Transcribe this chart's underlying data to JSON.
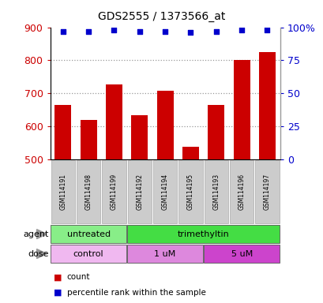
{
  "title": "GDS2555 / 1373566_at",
  "samples": [
    "GSM114191",
    "GSM114198",
    "GSM114199",
    "GSM114192",
    "GSM114194",
    "GSM114195",
    "GSM114193",
    "GSM114196",
    "GSM114197"
  ],
  "counts": [
    665,
    618,
    726,
    632,
    708,
    537,
    665,
    800,
    824
  ],
  "percentiles": [
    97,
    97,
    98,
    97,
    97,
    96,
    97,
    98,
    98
  ],
  "ymin": 500,
  "ymax": 900,
  "yticks_left": [
    500,
    600,
    700,
    800,
    900
  ],
  "yticks_right": [
    0,
    25,
    50,
    75,
    100
  ],
  "ytick_right_labels": [
    "0",
    "25",
    "50",
    "75",
    "100%"
  ],
  "bar_color": "#cc0000",
  "dot_color": "#0000cc",
  "agent_groups": [
    {
      "label": "untreated",
      "start": 0,
      "end": 3,
      "color": "#88ee88"
    },
    {
      "label": "trimethyltin",
      "start": 3,
      "end": 9,
      "color": "#44dd44"
    }
  ],
  "dose_groups": [
    {
      "label": "control",
      "start": 0,
      "end": 3,
      "color": "#f0b8f0"
    },
    {
      "label": "1 uM",
      "start": 3,
      "end": 6,
      "color": "#dd88dd"
    },
    {
      "label": "5 uM",
      "start": 6,
      "end": 9,
      "color": "#cc44cc"
    }
  ],
  "sample_box_color": "#cccccc",
  "legend_count_color": "#cc0000",
  "legend_dot_color": "#0000cc"
}
